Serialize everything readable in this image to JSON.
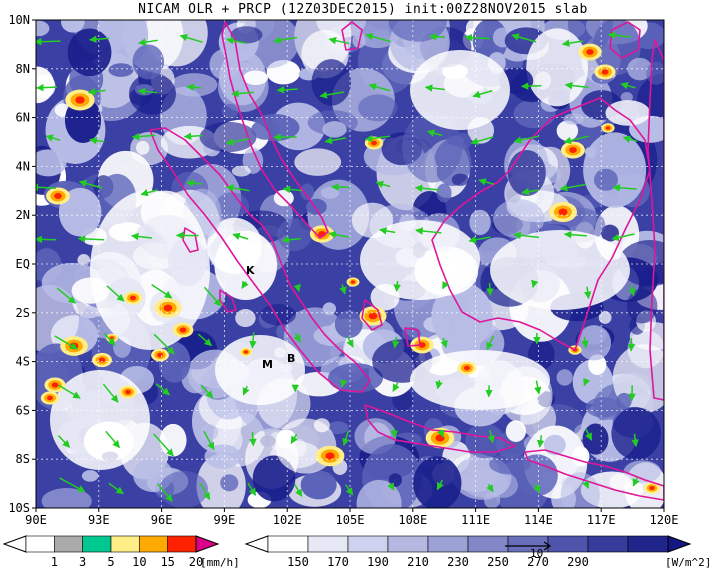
{
  "title": "NICAM OLR + PRCP (12Z03DEC2015) init:00Z28NOV2015 slab",
  "map": {
    "lat_labels": [
      "10N",
      "8N",
      "6N",
      "4N",
      "2N",
      "EQ",
      "2S",
      "4S",
      "6S",
      "8S",
      "10S"
    ],
    "lon_labels": [
      "90E",
      "93E",
      "96E",
      "99E",
      "102E",
      "105E",
      "108E",
      "111E",
      "114E",
      "117E",
      "120E"
    ],
    "place_labels": [
      "K",
      "M",
      "B"
    ],
    "gridlines": "dotted",
    "colors": {
      "olr_dark": "#1a1f8c",
      "olr_mid": "#5a62b8",
      "olr_light": "#b8bde6",
      "cloud_white": "#ffffff",
      "coastline": "#e0169a",
      "wind_arrow": "#22cc22"
    }
  },
  "precip_legend": {
    "unit": "[mm/h]",
    "labels": [
      "1",
      "3",
      "5",
      "10",
      "15",
      "20"
    ],
    "colors": [
      "#ffffff",
      "#aaaaaa",
      "#00c890",
      "#ffee88",
      "#ffaa00",
      "#ff2200",
      "#dd0088"
    ]
  },
  "olr_legend": {
    "unit": "[W/m^2]",
    "labels": [
      "150",
      "170",
      "190",
      "210",
      "230",
      "250",
      "270",
      "290"
    ],
    "colors": [
      "#ffffff",
      "#e6e8f6",
      "#cfd2ee",
      "#b5b9e2",
      "#9ca1d6",
      "#8287c8",
      "#686eba",
      "#4f55ac",
      "#363c9c",
      "#20268c",
      "#121880"
    ],
    "vector_ref": "10"
  }
}
